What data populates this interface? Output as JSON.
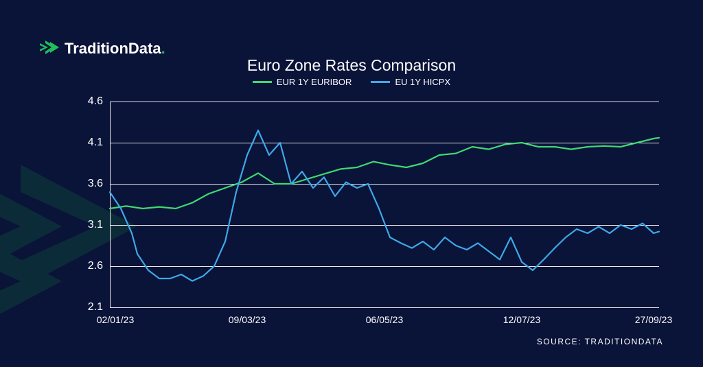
{
  "brand": {
    "name": "TraditionData",
    "dot": "."
  },
  "chart": {
    "type": "line",
    "title": "Euro Zone Rates Comparison",
    "background_color": "#0a1338",
    "grid_color": "#e8e8e8",
    "text_color": "#ffffff",
    "title_fontsize": 23,
    "label_fontsize": 16,
    "xlabel_fontsize": 14,
    "line_width": 2.2,
    "ylim": [
      2.1,
      4.6
    ],
    "ytick_step": 0.5,
    "yticks": [
      2.1,
      2.6,
      3.1,
      3.6,
      4.1,
      4.6
    ],
    "xticks": [
      {
        "pos": 0.01,
        "label": "02/01/23"
      },
      {
        "pos": 0.25,
        "label": "09/03/23"
      },
      {
        "pos": 0.5,
        "label": "06/05/23"
      },
      {
        "pos": 0.75,
        "label": "12/07/23"
      },
      {
        "pos": 0.99,
        "label": "27/09/23"
      }
    ],
    "series": [
      {
        "name": "EUR 1Y EURIBOR",
        "color": "#3fd872",
        "x": [
          0.0,
          0.03,
          0.06,
          0.09,
          0.12,
          0.15,
          0.18,
          0.21,
          0.24,
          0.27,
          0.3,
          0.33,
          0.36,
          0.39,
          0.42,
          0.45,
          0.48,
          0.51,
          0.54,
          0.57,
          0.6,
          0.63,
          0.66,
          0.69,
          0.72,
          0.75,
          0.78,
          0.81,
          0.84,
          0.87,
          0.9,
          0.93,
          0.96,
          0.99,
          1.0
        ],
        "y": [
          3.3,
          3.33,
          3.3,
          3.32,
          3.3,
          3.37,
          3.48,
          3.55,
          3.62,
          3.73,
          3.6,
          3.6,
          3.66,
          3.72,
          3.78,
          3.8,
          3.87,
          3.83,
          3.8,
          3.85,
          3.95,
          3.97,
          4.05,
          4.02,
          4.08,
          4.1,
          4.05,
          4.05,
          4.02,
          4.05,
          4.06,
          4.05,
          4.1,
          4.15,
          4.16
        ]
      },
      {
        "name": "EU 1Y HICPX",
        "color": "#3fa8e8",
        "x": [
          0.0,
          0.02,
          0.04,
          0.05,
          0.07,
          0.09,
          0.11,
          0.13,
          0.15,
          0.17,
          0.19,
          0.21,
          0.23,
          0.25,
          0.27,
          0.29,
          0.31,
          0.33,
          0.35,
          0.37,
          0.39,
          0.41,
          0.43,
          0.45,
          0.47,
          0.49,
          0.51,
          0.53,
          0.55,
          0.57,
          0.59,
          0.61,
          0.63,
          0.65,
          0.67,
          0.69,
          0.71,
          0.73,
          0.75,
          0.77,
          0.79,
          0.81,
          0.83,
          0.85,
          0.87,
          0.89,
          0.91,
          0.93,
          0.95,
          0.97,
          0.99,
          1.0
        ],
        "y": [
          3.5,
          3.3,
          3.0,
          2.75,
          2.55,
          2.45,
          2.45,
          2.5,
          2.42,
          2.48,
          2.6,
          2.9,
          3.5,
          3.95,
          4.25,
          3.95,
          4.1,
          3.6,
          3.75,
          3.55,
          3.68,
          3.45,
          3.62,
          3.55,
          3.6,
          3.3,
          2.95,
          2.88,
          2.82,
          2.9,
          2.8,
          2.95,
          2.85,
          2.8,
          2.88,
          2.78,
          2.68,
          2.95,
          2.65,
          2.55,
          2.68,
          2.82,
          2.95,
          3.05,
          3.0,
          3.08,
          3.0,
          3.1,
          3.05,
          3.12,
          3.0,
          3.02
        ]
      }
    ]
  },
  "source": "SOURCE: TRADITIONDATA",
  "decoration_color": "#0f5a3a"
}
